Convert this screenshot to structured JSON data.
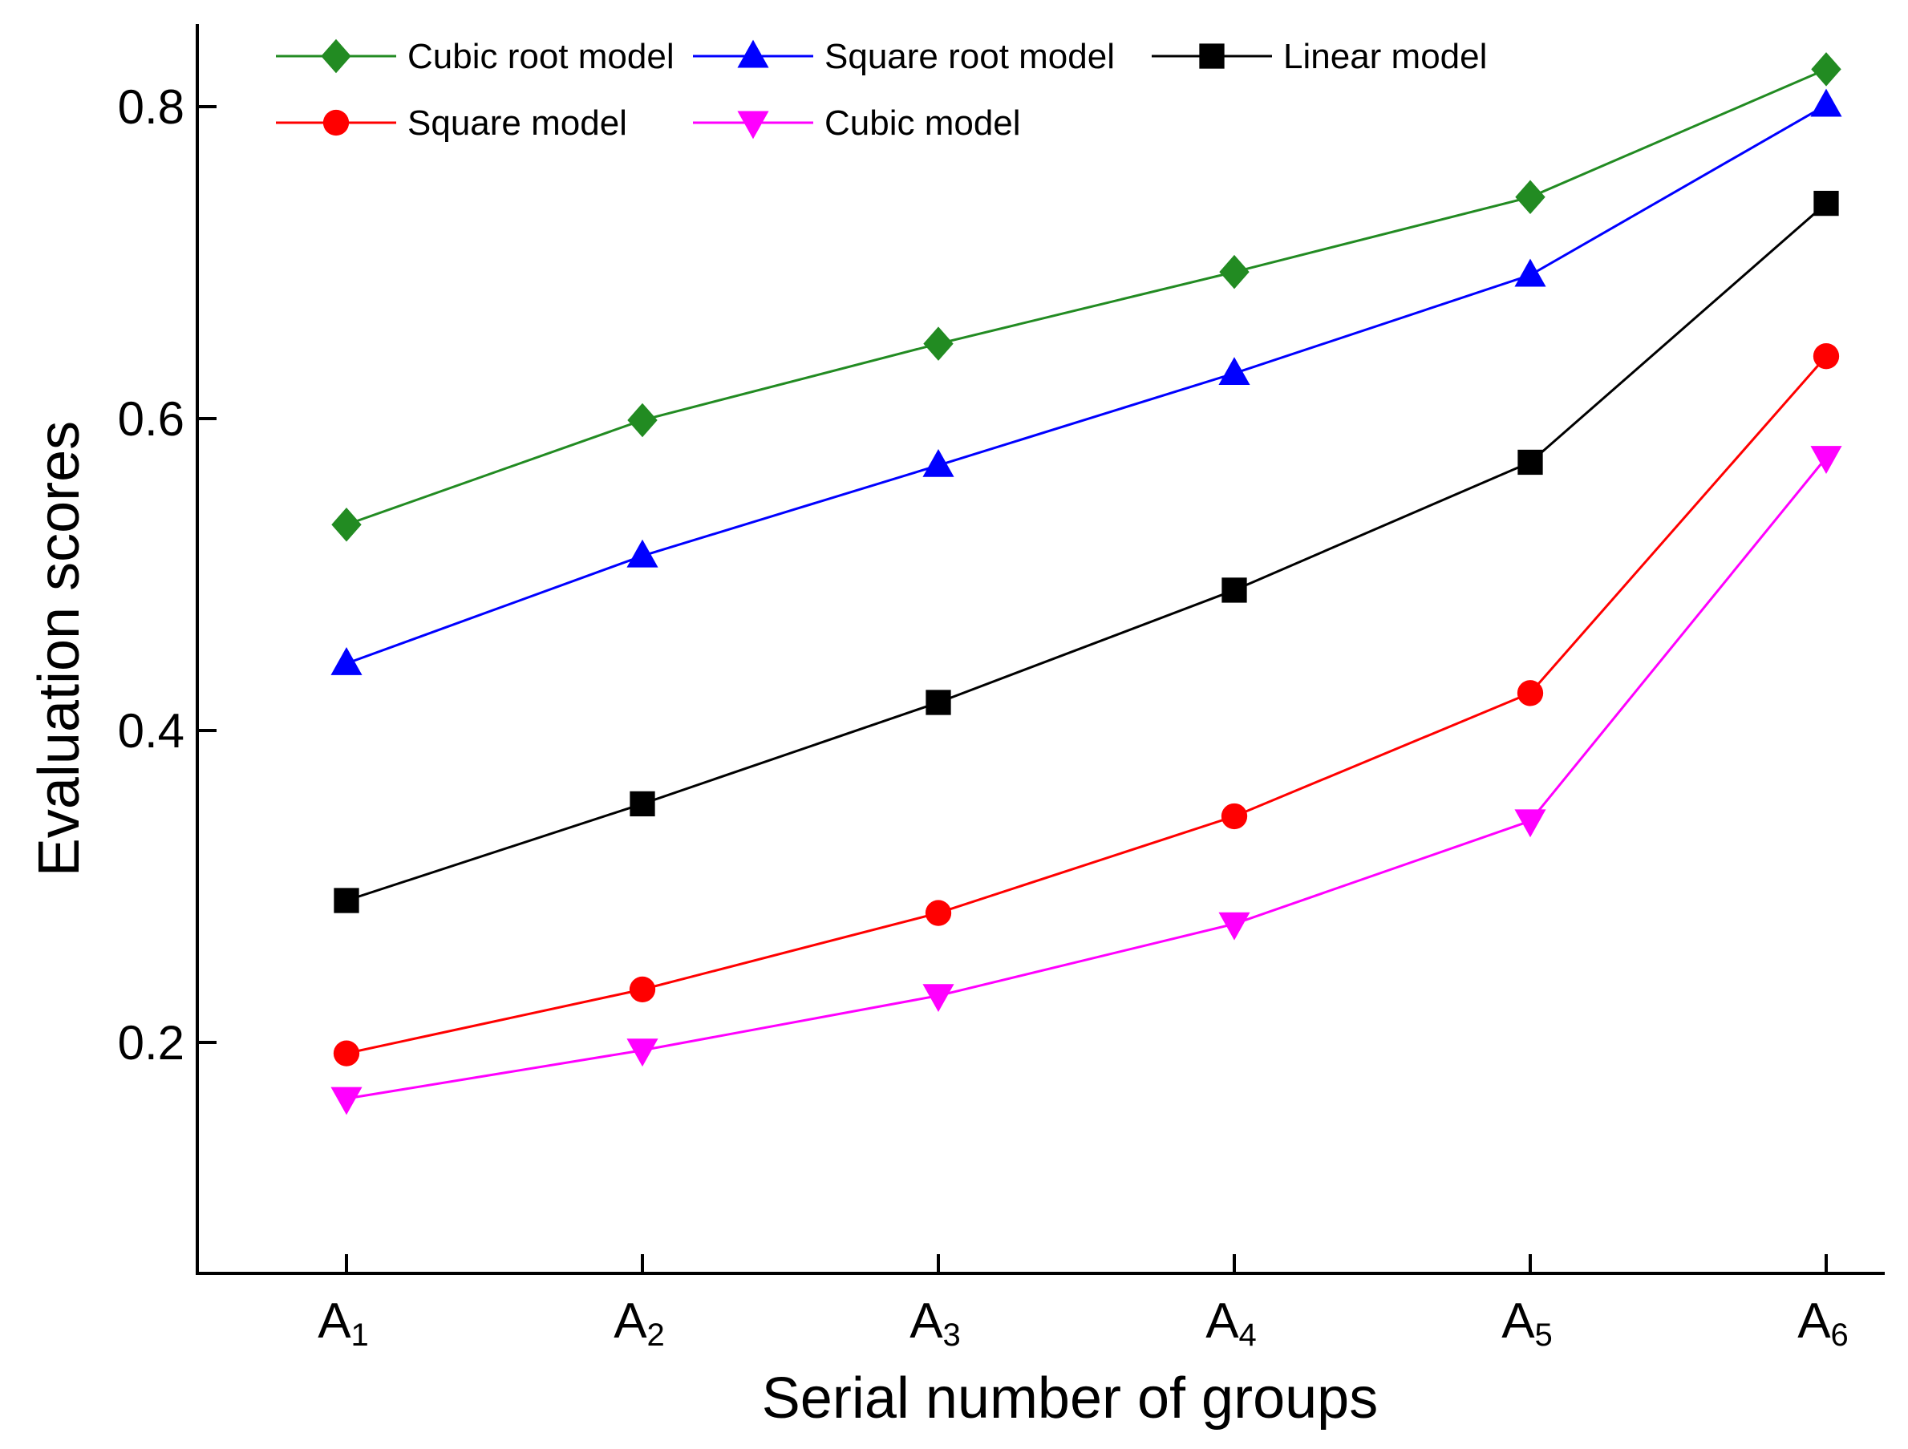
{
  "chart_data": {
    "type": "line",
    "title": "",
    "xlabel": "Serial number of groups",
    "ylabel": "Evaluation scores",
    "categories": [
      {
        "base": "A",
        "sub": "1"
      },
      {
        "base": "A",
        "sub": "2"
      },
      {
        "base": "A",
        "sub": "3"
      },
      {
        "base": "A",
        "sub": "4"
      },
      {
        "base": "A",
        "sub": "5"
      },
      {
        "base": "A",
        "sub": "6"
      }
    ],
    "ylim": [
      0.05,
      0.85
    ],
    "yticks": [
      0.2,
      0.4,
      0.6,
      0.8
    ],
    "ytick_labels": [
      "0.2",
      "0.4",
      "0.6",
      "0.8"
    ],
    "grid": false,
    "legend_position": "top",
    "series": [
      {
        "name": "Cubic root model",
        "color": "#228B22",
        "marker": "diamond",
        "values": [
          0.532,
          0.599,
          0.648,
          0.694,
          0.742,
          0.824
        ]
      },
      {
        "name": "Square root model",
        "color": "#0000FF",
        "marker": "triangle-up",
        "values": [
          0.443,
          0.512,
          0.57,
          0.629,
          0.692,
          0.801
        ]
      },
      {
        "name": "Linear model",
        "color": "#000000",
        "marker": "square",
        "values": [
          0.291,
          0.353,
          0.418,
          0.49,
          0.572,
          0.738
        ]
      },
      {
        "name": "Square model",
        "color": "#FF0000",
        "marker": "circle",
        "values": [
          0.193,
          0.234,
          0.283,
          0.345,
          0.424,
          0.64
        ]
      },
      {
        "name": "Cubic model",
        "color": "#FF00FF",
        "marker": "triangle-down",
        "values": [
          0.164,
          0.195,
          0.23,
          0.276,
          0.342,
          0.575
        ]
      }
    ]
  }
}
